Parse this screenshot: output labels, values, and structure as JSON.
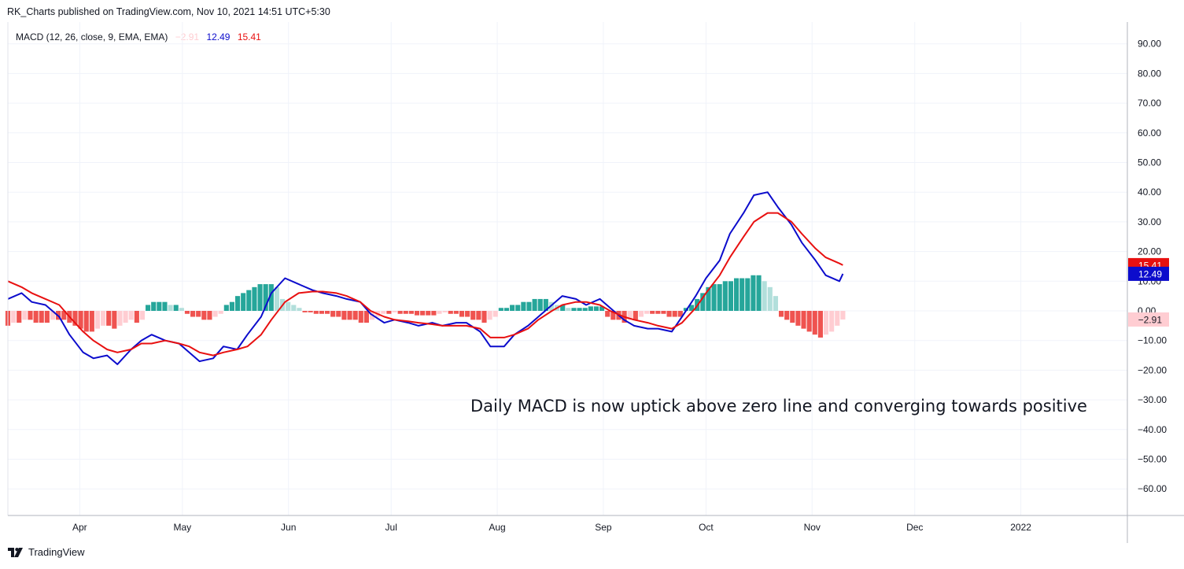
{
  "header": {
    "publisher_text": "RK_Charts published on TradingView.com, Nov 10, 2021 14:51 UTC+5:30"
  },
  "legend": {
    "indicator": "MACD (12, 26, close, 9, EMA, EMA)",
    "histogram_value": "−2.91",
    "macd_value": "12.49",
    "signal_value": "15.41"
  },
  "annotation": "Daily  MACD is now uptick above zero line and converging towards positive",
  "footer": {
    "brand": "TradingView"
  },
  "colors": {
    "macd_line": "#0c0ccc",
    "signal_line": "#e81010",
    "hist_pos_strong": "#26a69a",
    "hist_pos_weak": "#b2dfdb",
    "hist_neg_strong": "#ef5350",
    "hist_neg_weak": "#ffcdd2"
  },
  "icons": {
    "logo": "tradingview-logo-icon"
  },
  "chart_data": {
    "type": "line",
    "title": "",
    "xlabel": "",
    "ylabel": "",
    "x_ticks": [
      "Apr",
      "May",
      "Jun",
      "Jul",
      "Aug",
      "Sep",
      "Oct",
      "Nov",
      "Dec",
      "2022"
    ],
    "y_ticks": [
      "90.00",
      "80.00",
      "70.00",
      "60.00",
      "50.00",
      "40.00",
      "30.00",
      "20.00",
      "10.00",
      "0.00",
      "−10.00",
      "−20.00",
      "−30.00",
      "−40.00",
      "−50.00",
      "−60.00"
    ],
    "ylim": [
      -68,
      96
    ],
    "grid": true,
    "price_labels": [
      {
        "text": "15.41",
        "value": 15.41,
        "color": "#e81010"
      },
      {
        "text": "12.49",
        "value": 12.49,
        "color": "#0c0ccc"
      },
      {
        "text": "−2.91",
        "value": -2.91,
        "color": "#ffcdd2"
      }
    ],
    "series": [
      {
        "name": "MACD",
        "color": "#0c0ccc",
        "points": [
          [
            "2021-03-11",
            4
          ],
          [
            "2021-03-15",
            6
          ],
          [
            "2021-03-18",
            3
          ],
          [
            "2021-03-22",
            2
          ],
          [
            "2021-03-26",
            -2
          ],
          [
            "2021-03-29",
            -8
          ],
          [
            "2021-04-02",
            -14
          ],
          [
            "2021-04-05",
            -16
          ],
          [
            "2021-04-09",
            -15
          ],
          [
            "2021-04-12",
            -18
          ],
          [
            "2021-04-16",
            -13
          ],
          [
            "2021-04-19",
            -10
          ],
          [
            "2021-04-22",
            -8
          ],
          [
            "2021-04-26",
            -10
          ],
          [
            "2021-04-30",
            -11
          ],
          [
            "2021-05-03",
            -14
          ],
          [
            "2021-05-06",
            -17
          ],
          [
            "2021-05-10",
            -16
          ],
          [
            "2021-05-13",
            -12
          ],
          [
            "2021-05-17",
            -13
          ],
          [
            "2021-05-20",
            -8
          ],
          [
            "2021-05-24",
            -2
          ],
          [
            "2021-05-27",
            6
          ],
          [
            "2021-05-31",
            11
          ],
          [
            "2021-06-04",
            9
          ],
          [
            "2021-06-08",
            7
          ],
          [
            "2021-06-11",
            6
          ],
          [
            "2021-06-15",
            5
          ],
          [
            "2021-06-18",
            4
          ],
          [
            "2021-06-22",
            3
          ],
          [
            "2021-06-25",
            -1
          ],
          [
            "2021-06-29",
            -4
          ],
          [
            "2021-07-02",
            -3
          ],
          [
            "2021-07-06",
            -4
          ],
          [
            "2021-07-09",
            -5
          ],
          [
            "2021-07-13",
            -4
          ],
          [
            "2021-07-16",
            -5
          ],
          [
            "2021-07-20",
            -4
          ],
          [
            "2021-07-23",
            -4
          ],
          [
            "2021-07-27",
            -7
          ],
          [
            "2021-07-30",
            -12
          ],
          [
            "2021-08-03",
            -12
          ],
          [
            "2021-08-06",
            -8
          ],
          [
            "2021-08-10",
            -5
          ],
          [
            "2021-08-13",
            -2
          ],
          [
            "2021-08-17",
            2
          ],
          [
            "2021-08-20",
            5
          ],
          [
            "2021-08-24",
            4
          ],
          [
            "2021-08-27",
            2
          ],
          [
            "2021-08-31",
            4
          ],
          [
            "2021-09-03",
            1
          ],
          [
            "2021-09-07",
            -3
          ],
          [
            "2021-09-10",
            -5
          ],
          [
            "2021-09-14",
            -6
          ],
          [
            "2021-09-17",
            -6
          ],
          [
            "2021-09-21",
            -7
          ],
          [
            "2021-09-24",
            -2
          ],
          [
            "2021-09-28",
            5
          ],
          [
            "2021-10-01",
            11
          ],
          [
            "2021-10-05",
            17
          ],
          [
            "2021-10-08",
            26
          ],
          [
            "2021-10-12",
            33
          ],
          [
            "2021-10-15",
            39
          ],
          [
            "2021-10-19",
            40
          ],
          [
            "2021-10-22",
            35
          ],
          [
            "2021-10-26",
            29
          ],
          [
            "2021-10-29",
            23
          ],
          [
            "2021-11-02",
            17
          ],
          [
            "2021-11-05",
            12
          ],
          [
            "2021-11-09",
            10
          ],
          [
            "2021-11-10",
            12.49
          ]
        ]
      },
      {
        "name": "Signal",
        "color": "#e81010",
        "points": [
          [
            "2021-03-11",
            10
          ],
          [
            "2021-03-15",
            8
          ],
          [
            "2021-03-18",
            6
          ],
          [
            "2021-03-22",
            4
          ],
          [
            "2021-03-26",
            2
          ],
          [
            "2021-03-29",
            -2
          ],
          [
            "2021-04-02",
            -7
          ],
          [
            "2021-04-05",
            -10
          ],
          [
            "2021-04-09",
            -13
          ],
          [
            "2021-04-12",
            -14
          ],
          [
            "2021-04-16",
            -13
          ],
          [
            "2021-04-19",
            -11
          ],
          [
            "2021-04-22",
            -11
          ],
          [
            "2021-04-26",
            -10
          ],
          [
            "2021-04-30",
            -11
          ],
          [
            "2021-05-03",
            -12
          ],
          [
            "2021-05-06",
            -14
          ],
          [
            "2021-05-10",
            -15
          ],
          [
            "2021-05-13",
            -14
          ],
          [
            "2021-05-17",
            -13
          ],
          [
            "2021-05-20",
            -12
          ],
          [
            "2021-05-24",
            -8
          ],
          [
            "2021-05-27",
            -3
          ],
          [
            "2021-05-31",
            3
          ],
          [
            "2021-06-04",
            6
          ],
          [
            "2021-06-08",
            6.5
          ],
          [
            "2021-06-11",
            6.5
          ],
          [
            "2021-06-15",
            6
          ],
          [
            "2021-06-18",
            5
          ],
          [
            "2021-06-22",
            3
          ],
          [
            "2021-06-25",
            0
          ],
          [
            "2021-06-29",
            -2
          ],
          [
            "2021-07-02",
            -3
          ],
          [
            "2021-07-06",
            -3.5
          ],
          [
            "2021-07-09",
            -4
          ],
          [
            "2021-07-13",
            -4.5
          ],
          [
            "2021-07-16",
            -5
          ],
          [
            "2021-07-20",
            -5
          ],
          [
            "2021-07-23",
            -5
          ],
          [
            "2021-07-27",
            -6
          ],
          [
            "2021-07-30",
            -9
          ],
          [
            "2021-08-03",
            -9
          ],
          [
            "2021-08-06",
            -8
          ],
          [
            "2021-08-10",
            -6
          ],
          [
            "2021-08-13",
            -3
          ],
          [
            "2021-08-17",
            0
          ],
          [
            "2021-08-20",
            2
          ],
          [
            "2021-08-24",
            3
          ],
          [
            "2021-08-27",
            3
          ],
          [
            "2021-08-31",
            2
          ],
          [
            "2021-09-03",
            0
          ],
          [
            "2021-09-07",
            -2
          ],
          [
            "2021-09-10",
            -3
          ],
          [
            "2021-09-14",
            -4
          ],
          [
            "2021-09-17",
            -5
          ],
          [
            "2021-09-21",
            -6
          ],
          [
            "2021-09-24",
            -4
          ],
          [
            "2021-09-28",
            1
          ],
          [
            "2021-10-01",
            6
          ],
          [
            "2021-10-05",
            12
          ],
          [
            "2021-10-08",
            18
          ],
          [
            "2021-10-12",
            25
          ],
          [
            "2021-10-15",
            30
          ],
          [
            "2021-10-19",
            33
          ],
          [
            "2021-10-22",
            33
          ],
          [
            "2021-10-26",
            30
          ],
          [
            "2021-10-29",
            26
          ],
          [
            "2021-11-02",
            21
          ],
          [
            "2021-11-05",
            18
          ],
          [
            "2021-11-09",
            16
          ],
          [
            "2021-11-10",
            15.41
          ]
        ]
      }
    ],
    "histogram": {
      "name": "Histogram",
      "start": "2021-03-11",
      "end": "2021-11-10",
      "values": [
        -5,
        -4,
        -4,
        -3,
        -3,
        -4,
        -4,
        -4,
        -3,
        -3,
        -3,
        -4,
        -5,
        -6,
        -7,
        -7,
        -6,
        -5,
        -5,
        -6,
        -5,
        -4,
        -3,
        -4,
        -3,
        2,
        3,
        3,
        3,
        2,
        2,
        1,
        -1,
        -2,
        -2,
        -3,
        -3,
        -2,
        -1,
        2,
        3,
        5,
        6,
        7,
        8,
        9,
        9,
        9,
        8,
        4,
        3,
        2,
        1,
        -0.5,
        -0.5,
        -1,
        -1,
        -1,
        -2,
        -2,
        -3,
        -3,
        -3,
        -4,
        -4,
        -3,
        -2,
        -1,
        -1,
        -0.5,
        -1,
        -1,
        -1,
        -1.5,
        -1.5,
        -1.5,
        -1.5,
        -1,
        -0.5,
        -1,
        -1,
        -2,
        -2,
        -3,
        -3,
        -4,
        -3,
        -2,
        1,
        1,
        2,
        2,
        3,
        3,
        4,
        4,
        4,
        3,
        2,
        2,
        1,
        1,
        1,
        1,
        1.5,
        1.5,
        1.5,
        -2,
        -3,
        -3,
        -4,
        -3,
        -3,
        -2,
        -1,
        -1,
        -1,
        -1,
        -2,
        -2,
        -2,
        1,
        2,
        4,
        6,
        8,
        9,
        9,
        10,
        10,
        11,
        11,
        11,
        12,
        12,
        10,
        8,
        5,
        -2,
        -3,
        -4,
        -5,
        -6,
        -7,
        -8,
        -9,
        -8,
        -7,
        -5,
        -2.91
      ]
    }
  }
}
